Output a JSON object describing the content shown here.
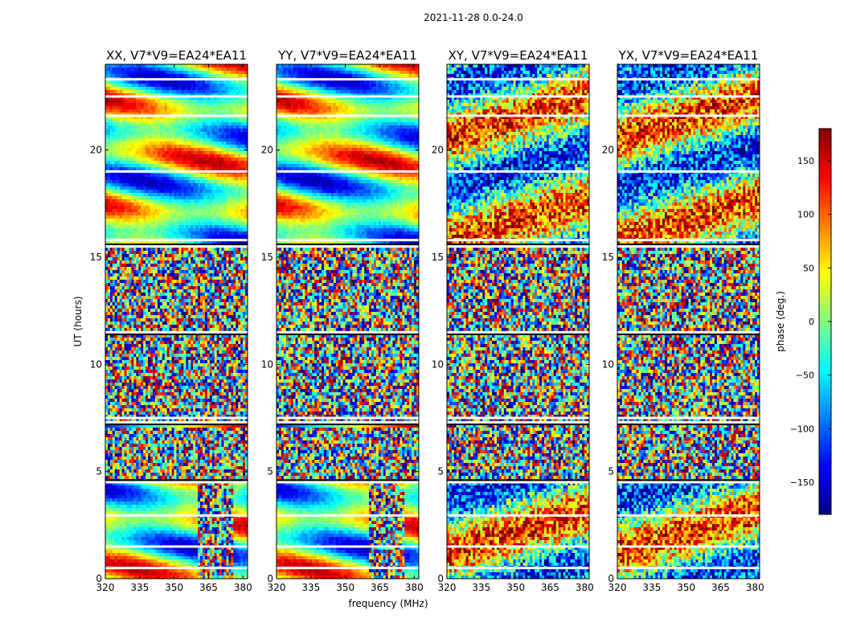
{
  "figure": {
    "suptitle": "2021-11-28 0.0-24.0",
    "xlabel": "frequency (MHz)",
    "ylabel": "UT (hours)"
  },
  "chart_data": {
    "type": "heatmap",
    "x_range": [
      320,
      382
    ],
    "y_range": [
      0,
      24
    ],
    "xticks": [
      320,
      335,
      350,
      365,
      380
    ],
    "yticks": [
      0,
      5,
      10,
      15,
      20
    ],
    "colorbar": {
      "label": "phase (deg.)",
      "range": [
        -180,
        180
      ],
      "ticks": [
        -150,
        -100,
        -50,
        0,
        50,
        100,
        150
      ],
      "tick_labels": [
        "−150",
        "−100",
        "−50",
        "0",
        "50",
        "100",
        "150"
      ],
      "colormap": "jet"
    },
    "panels": [
      {
        "title": "XX, V7*V9=EA24*EA11",
        "pol": "XX",
        "coherence": "high"
      },
      {
        "title": "YY, V7*V9=EA24*EA11",
        "pol": "YY",
        "coherence": "high"
      },
      {
        "title": "XY, V7*V9=EA24*EA11",
        "pol": "XY",
        "coherence": "low"
      },
      {
        "title": "YX, V7*V9=EA24*EA11",
        "pol": "YX",
        "coherence": "low"
      }
    ],
    "gap_rows_ut": [
      0.5,
      1.5,
      2.95,
      4.5,
      7.3,
      7.5,
      11.5,
      15.5,
      15.8,
      19.0,
      21.6,
      22.5,
      23.3
    ]
  }
}
